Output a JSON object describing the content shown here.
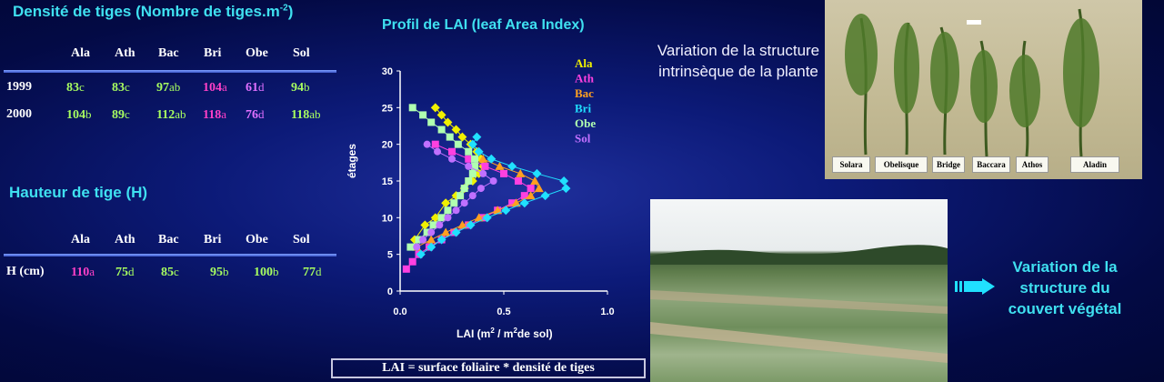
{
  "colors": {
    "cyan_title": "#3fe0f0",
    "green": "#a8ff60",
    "magenta": "#ff40c8",
    "pink": "#e070ff"
  },
  "density": {
    "title": "Densité de tiges (Nombre de tiges.m",
    "title_sup": "-2",
    "title_end": ")",
    "headers": [
      "Ala",
      "Ath",
      "Bac",
      "Bri",
      "Obe",
      "Sol"
    ],
    "rows": [
      {
        "label": "1999",
        "cells": [
          {
            "v": "83",
            "l": "c",
            "c": "green"
          },
          {
            "v": "83",
            "l": "c",
            "c": "green"
          },
          {
            "v": "97",
            "l": "ab",
            "c": "green"
          },
          {
            "v": "104",
            "l": "a",
            "c": "magenta"
          },
          {
            "v": "61",
            "l": "d",
            "c": "pink"
          },
          {
            "v": "94",
            "l": "b",
            "c": "green"
          }
        ]
      },
      {
        "label": "2000",
        "cells": [
          {
            "v": "104",
            "l": "b",
            "c": "green"
          },
          {
            "v": "89",
            "l": "c",
            "c": "green"
          },
          {
            "v": "112",
            "l": "ab",
            "c": "green"
          },
          {
            "v": "118",
            "l": "a",
            "c": "magenta"
          },
          {
            "v": "76",
            "l": "d",
            "c": "pink"
          },
          {
            "v": "118",
            "l": "ab",
            "c": "green"
          }
        ]
      }
    ]
  },
  "height": {
    "title": "Hauteur de tige (H)",
    "headers": [
      "Ala",
      "Ath",
      "Bac",
      "Bri",
      "Obe",
      "Sol"
    ],
    "row": {
      "label": "H (cm)",
      "cells": [
        {
          "v": "110",
          "l": "a",
          "c": "magenta"
        },
        {
          "v": "75",
          "l": "d",
          "c": "green"
        },
        {
          "v": "85",
          "l": "c",
          "c": "green"
        },
        {
          "v": "95",
          "l": "b",
          "c": "green"
        },
        {
          "v": "100",
          "l": "b",
          "c": "green"
        },
        {
          "v": "77",
          "l": "d",
          "c": "green"
        }
      ]
    }
  },
  "chart_data": {
    "type": "scatter",
    "title": "Profil de  LAI (leaf Area Index)",
    "xlabel": "LAI (m",
    "xlabel_sup1": "2",
    "xlabel_mid": " / m",
    "xlabel_sup2": "2",
    "xlabel_end": "de sol)",
    "ylabel": "étages",
    "xlim": [
      0,
      1.0
    ],
    "ylim": [
      0,
      30
    ],
    "xticks": [
      "0.0",
      "0.5",
      "1.0"
    ],
    "yticks": [
      "0",
      "5",
      "10",
      "15",
      "20",
      "25",
      "30"
    ],
    "series": [
      {
        "name": "Ala",
        "color": "#f0f000",
        "marker": "diamond",
        "points": [
          [
            0.07,
            7
          ],
          [
            0.12,
            9
          ],
          [
            0.17,
            10
          ],
          [
            0.22,
            12
          ],
          [
            0.27,
            13
          ],
          [
            0.31,
            14
          ],
          [
            0.35,
            15
          ],
          [
            0.38,
            16
          ],
          [
            0.4,
            17
          ],
          [
            0.39,
            18
          ],
          [
            0.37,
            19
          ],
          [
            0.34,
            20
          ],
          [
            0.3,
            21
          ],
          [
            0.27,
            22
          ],
          [
            0.23,
            23
          ],
          [
            0.2,
            24
          ],
          [
            0.17,
            25
          ]
        ]
      },
      {
        "name": "Ath",
        "color": "#ff40e0",
        "marker": "square",
        "points": [
          [
            0.03,
            3
          ],
          [
            0.06,
            4
          ],
          [
            0.09,
            5
          ],
          [
            0.14,
            6
          ],
          [
            0.2,
            7
          ],
          [
            0.26,
            8
          ],
          [
            0.33,
            9
          ],
          [
            0.4,
            10
          ],
          [
            0.47,
            11
          ],
          [
            0.54,
            12
          ],
          [
            0.6,
            13
          ],
          [
            0.63,
            14
          ],
          [
            0.57,
            15
          ],
          [
            0.5,
            16
          ],
          [
            0.41,
            17
          ],
          [
            0.33,
            18
          ],
          [
            0.25,
            19
          ],
          [
            0.17,
            20
          ]
        ]
      },
      {
        "name": "Bac",
        "color": "#ffa020",
        "marker": "triangle",
        "points": [
          [
            0.08,
            6
          ],
          [
            0.15,
            7
          ],
          [
            0.22,
            8
          ],
          [
            0.3,
            9
          ],
          [
            0.38,
            10
          ],
          [
            0.47,
            11
          ],
          [
            0.56,
            12
          ],
          [
            0.63,
            13
          ],
          [
            0.67,
            14
          ],
          [
            0.65,
            15
          ],
          [
            0.58,
            16
          ],
          [
            0.48,
            17
          ],
          [
            0.4,
            18
          ]
        ]
      },
      {
        "name": "Bri",
        "color": "#20e0ff",
        "marker": "diamond",
        "points": [
          [
            0.1,
            5
          ],
          [
            0.15,
            6
          ],
          [
            0.2,
            7
          ],
          [
            0.27,
            8
          ],
          [
            0.34,
            9
          ],
          [
            0.42,
            10
          ],
          [
            0.51,
            11
          ],
          [
            0.6,
            12
          ],
          [
            0.7,
            13
          ],
          [
            0.8,
            14
          ],
          [
            0.79,
            15
          ],
          [
            0.66,
            16
          ],
          [
            0.54,
            17
          ],
          [
            0.44,
            18
          ],
          [
            0.38,
            19
          ],
          [
            0.35,
            20
          ],
          [
            0.37,
            21
          ]
        ]
      },
      {
        "name": "Obe",
        "color": "#b0ffb0",
        "marker": "square",
        "points": [
          [
            0.05,
            6
          ],
          [
            0.09,
            7
          ],
          [
            0.13,
            8
          ],
          [
            0.16,
            9
          ],
          [
            0.2,
            10
          ],
          [
            0.23,
            11
          ],
          [
            0.26,
            12
          ],
          [
            0.29,
            13
          ],
          [
            0.31,
            14
          ],
          [
            0.33,
            15
          ],
          [
            0.35,
            16
          ],
          [
            0.36,
            17
          ],
          [
            0.36,
            18
          ],
          [
            0.33,
            19
          ],
          [
            0.28,
            20
          ],
          [
            0.24,
            21
          ],
          [
            0.2,
            22
          ],
          [
            0.15,
            23
          ],
          [
            0.11,
            24
          ],
          [
            0.06,
            25
          ]
        ]
      },
      {
        "name": "Sol",
        "color": "#c070ff",
        "marker": "circle",
        "points": [
          [
            0.08,
            6
          ],
          [
            0.11,
            7
          ],
          [
            0.15,
            8
          ],
          [
            0.19,
            9
          ],
          [
            0.23,
            10
          ],
          [
            0.27,
            11
          ],
          [
            0.31,
            12
          ],
          [
            0.35,
            13
          ],
          [
            0.39,
            14
          ],
          [
            0.45,
            15
          ],
          [
            0.4,
            16
          ],
          [
            0.33,
            17
          ],
          [
            0.25,
            18
          ],
          [
            0.18,
            19
          ],
          [
            0.13,
            20
          ]
        ]
      }
    ]
  },
  "photo_plants": {
    "labels": [
      "Solara",
      "Obelisque",
      "Bridge",
      "Baccara",
      "Athos",
      "Aladin"
    ]
  },
  "variation_plant": "Variation de la structure intrinsèque de la plante",
  "variation_canopy": "Variation de la structure du couvert végétal",
  "formula": "LAI  = surface foliaire * densité de tiges"
}
